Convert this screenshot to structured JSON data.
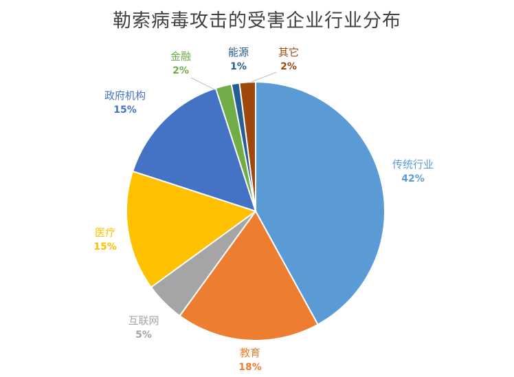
{
  "chart_data": {
    "type": "pie",
    "title": "勒索病毒攻击的受害企业行业分布",
    "slices": [
      {
        "label": "传统行业",
        "value": 42,
        "value_label": "42%",
        "color": "#5B9BD5"
      },
      {
        "label": "教育",
        "value": 18,
        "value_label": "18%",
        "color": "#ED7D31"
      },
      {
        "label": "互联网",
        "value": 5,
        "value_label": "5%",
        "color": "#A5A5A5"
      },
      {
        "label": "医疗",
        "value": 15,
        "value_label": "15%",
        "color": "#FFC000"
      },
      {
        "label": "政府机构",
        "value": 15,
        "value_label": "15%",
        "color": "#4472C4"
      },
      {
        "label": "金融",
        "value": 2,
        "value_label": "2%",
        "color": "#70AD47"
      },
      {
        "label": "能源",
        "value": 1,
        "value_label": "1%",
        "color": "#255E91"
      },
      {
        "label": "其它",
        "value": 2,
        "value_label": "2%",
        "color": "#9E480E"
      }
    ],
    "start_direction": "12 o'clock",
    "order": "clockwise",
    "legend": "none",
    "data_labels": "category name and percentage"
  }
}
